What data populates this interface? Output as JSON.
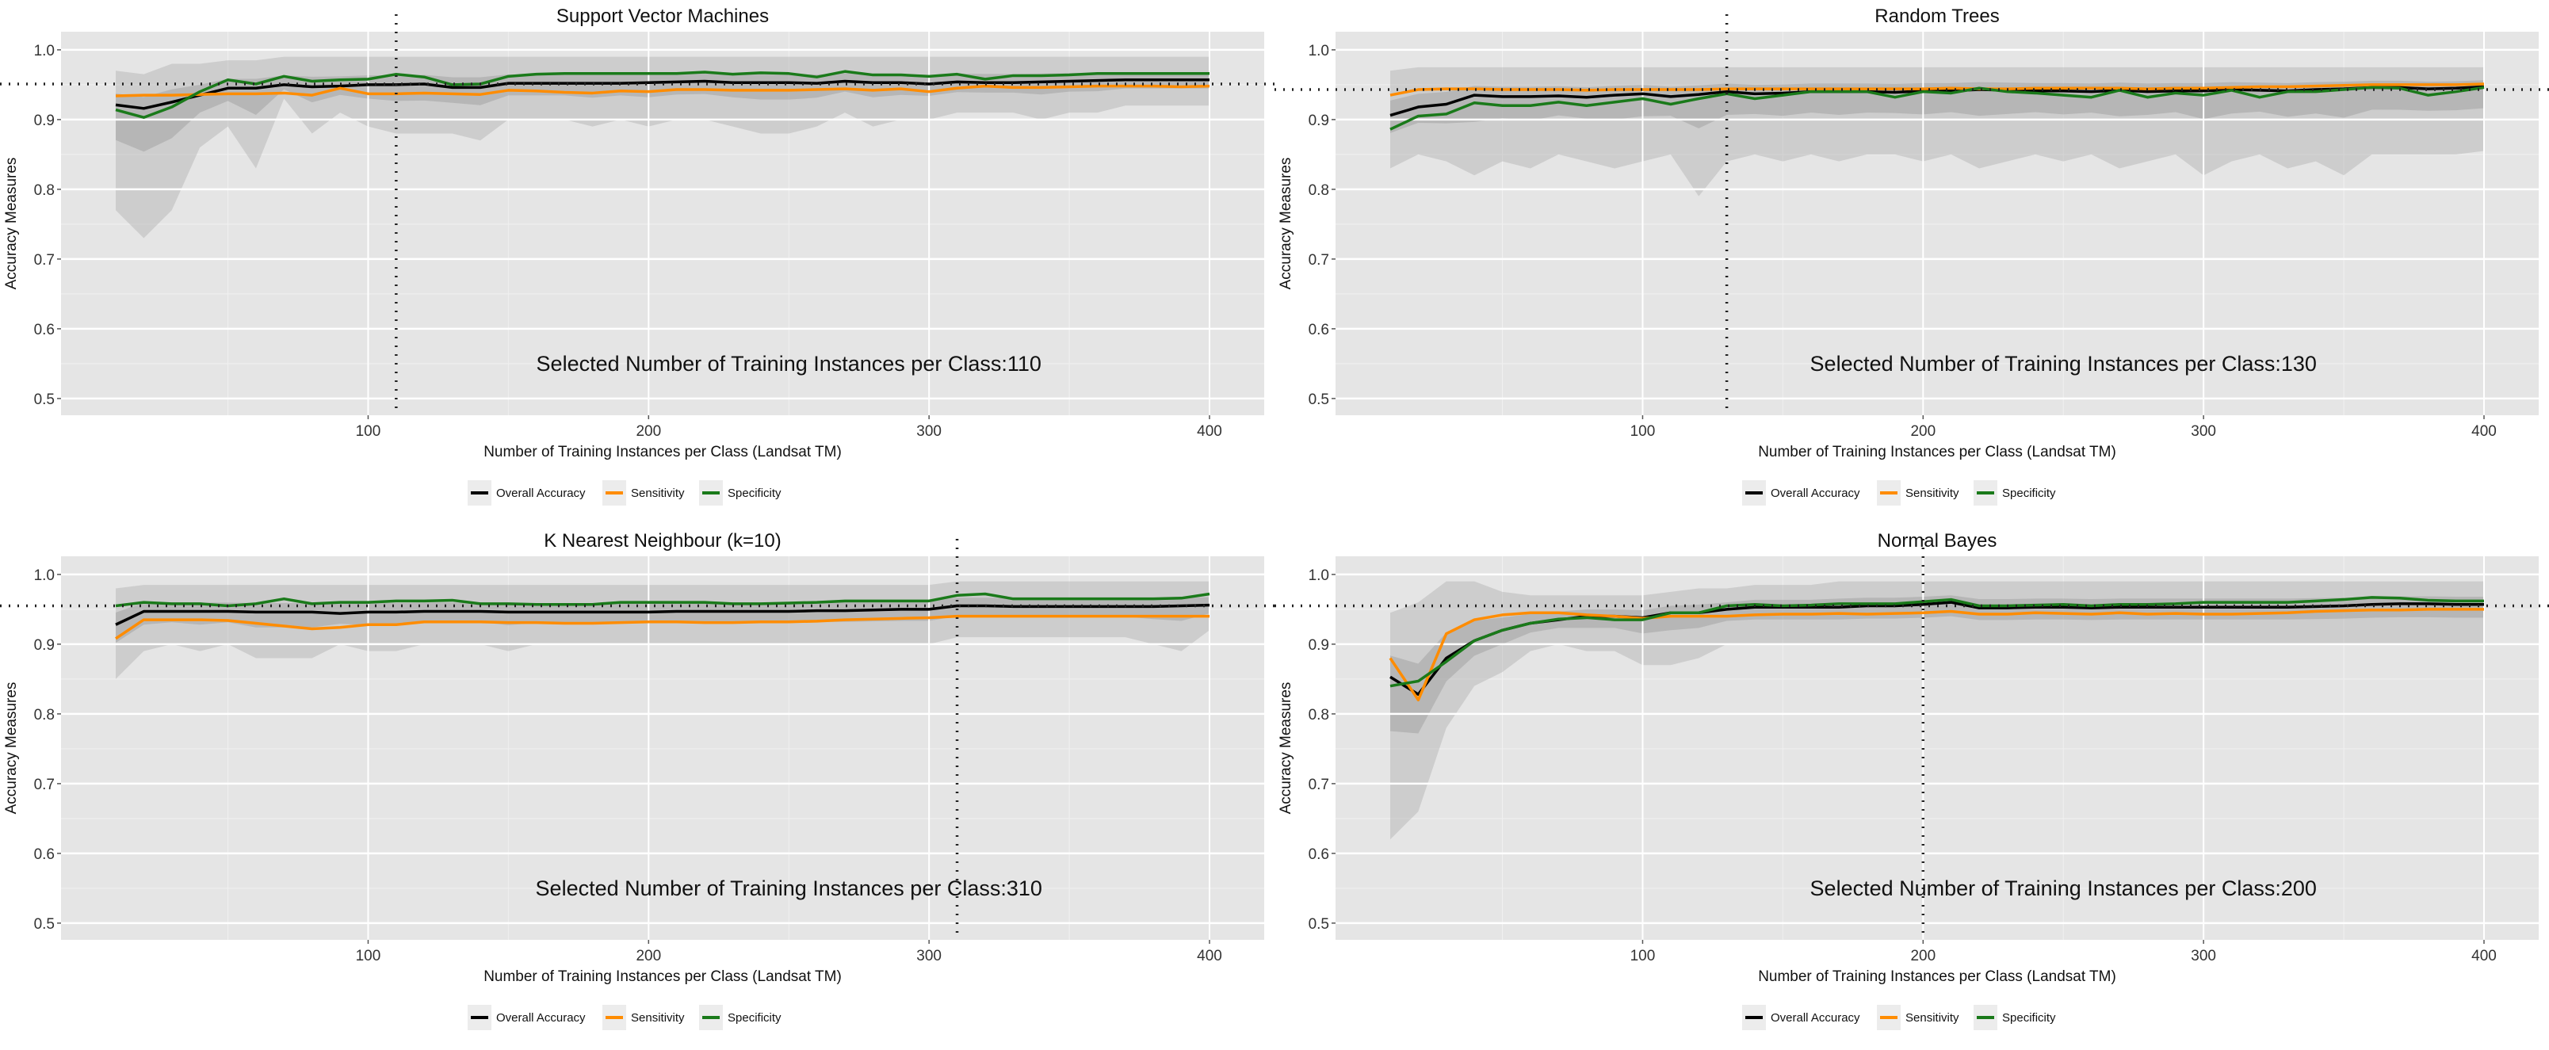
{
  "legend": {
    "items": [
      {
        "label": "Overall Accuracy",
        "color": "#000000"
      },
      {
        "label": "Sensitivity",
        "color": "#FF8C00"
      },
      {
        "label": "Specificity",
        "color": "#1A7A1A"
      }
    ]
  },
  "chart_data": [
    {
      "type": "line",
      "title": "Support Vector Machines",
      "xlabel": "Number of Training Instances per Class (Landsat TM)",
      "ylabel": "Accuracy Measures",
      "xlim": [
        -9.5,
        419.5
      ],
      "ylim": [
        0.476,
        1.026
      ],
      "xticks": [
        100,
        200,
        300,
        400
      ],
      "yticks": [
        "0.5",
        "0.6",
        "0.7",
        "0.8",
        "0.9",
        "1.0"
      ],
      "grid": true,
      "legend_position": "bottom",
      "x_start": 10,
      "x_step": 10,
      "reference_y": 0.951,
      "selected_x": 110,
      "annotation": "Selected Number of Training Instances per Class:110",
      "series": [
        {
          "name": "Overall Accuracy",
          "values": [
            0.921,
            0.916,
            0.925,
            0.935,
            0.945,
            0.945,
            0.95,
            0.947,
            0.948,
            0.95,
            0.95,
            0.951,
            0.946,
            0.946,
            0.952,
            0.952,
            0.952,
            0.952,
            0.952,
            0.953,
            0.954,
            0.955,
            0.953,
            0.953,
            0.953,
            0.952,
            0.955,
            0.953,
            0.953,
            0.951,
            0.954,
            0.953,
            0.953,
            0.954,
            0.955,
            0.956,
            0.957,
            0.957,
            0.957,
            0.957
          ]
        },
        {
          "name": "Sensitivity",
          "values": [
            0.934,
            0.935,
            0.935,
            0.936,
            0.937,
            0.937,
            0.938,
            0.935,
            0.945,
            0.937,
            0.937,
            0.938,
            0.937,
            0.936,
            0.942,
            0.941,
            0.939,
            0.938,
            0.941,
            0.94,
            0.943,
            0.943,
            0.942,
            0.942,
            0.942,
            0.943,
            0.944,
            0.942,
            0.944,
            0.94,
            0.945,
            0.948,
            0.946,
            0.946,
            0.947,
            0.948,
            0.948,
            0.948,
            0.947,
            0.948
          ]
        },
        {
          "name": "Specificity",
          "values": [
            0.914,
            0.903,
            0.918,
            0.94,
            0.957,
            0.951,
            0.962,
            0.955,
            0.957,
            0.958,
            0.965,
            0.961,
            0.95,
            0.951,
            0.962,
            0.965,
            0.966,
            0.966,
            0.966,
            0.966,
            0.966,
            0.968,
            0.965,
            0.967,
            0.966,
            0.961,
            0.969,
            0.964,
            0.964,
            0.962,
            0.965,
            0.958,
            0.963,
            0.963,
            0.964,
            0.966,
            0.966,
            0.966,
            0.966,
            0.966
          ]
        }
      ],
      "band_lower": [
        0.77,
        0.73,
        0.77,
        0.86,
        0.89,
        0.83,
        0.93,
        0.88,
        0.91,
        0.89,
        0.88,
        0.88,
        0.88,
        0.87,
        0.9,
        0.9,
        0.9,
        0.89,
        0.9,
        0.89,
        0.9,
        0.9,
        0.89,
        0.88,
        0.88,
        0.89,
        0.91,
        0.89,
        0.9,
        0.9,
        0.91,
        0.91,
        0.91,
        0.9,
        0.91,
        0.91,
        0.92,
        0.92,
        0.92,
        0.92
      ],
      "band_upper": [
        0.97,
        0.965,
        0.98,
        0.98,
        0.985,
        0.985,
        0.99,
        0.99,
        0.99,
        0.99,
        0.99,
        0.99,
        0.99,
        0.99,
        0.99,
        0.99,
        0.99,
        0.99,
        0.99,
        0.99,
        0.99,
        0.99,
        0.99,
        0.99,
        0.99,
        0.99,
        0.99,
        0.99,
        0.99,
        0.99,
        0.99,
        0.99,
        0.99,
        0.99,
        0.99,
        0.99,
        0.99,
        0.99,
        0.99,
        0.99
      ]
    },
    {
      "type": "line",
      "title": "Random Trees",
      "xlabel": "Number of Training Instances per Class (Landsat TM)",
      "ylabel": "Accuracy Measures",
      "xlim": [
        -9.5,
        419.5
      ],
      "ylim": [
        0.476,
        1.026
      ],
      "xticks": [
        100,
        200,
        300,
        400
      ],
      "yticks": [
        "0.5",
        "0.6",
        "0.7",
        "0.8",
        "0.9",
        "1.0"
      ],
      "grid": true,
      "legend_position": "bottom",
      "x_start": 10,
      "x_step": 10,
      "reference_y": 0.943,
      "selected_x": 130,
      "annotation": "Selected Number of Training Instances per Class:130",
      "series": [
        {
          "name": "Overall Accuracy",
          "values": [
            0.906,
            0.918,
            0.922,
            0.935,
            0.933,
            0.933,
            0.934,
            0.932,
            0.935,
            0.937,
            0.933,
            0.936,
            0.94,
            0.937,
            0.938,
            0.94,
            0.94,
            0.94,
            0.939,
            0.941,
            0.941,
            0.943,
            0.942,
            0.941,
            0.941,
            0.94,
            0.942,
            0.94,
            0.941,
            0.941,
            0.943,
            0.942,
            0.941,
            0.943,
            0.944,
            0.946,
            0.946,
            0.944,
            0.945,
            0.947
          ]
        },
        {
          "name": "Sensitivity",
          "values": [
            0.935,
            0.943,
            0.944,
            0.944,
            0.943,
            0.943,
            0.943,
            0.942,
            0.943,
            0.943,
            0.943,
            0.943,
            0.944,
            0.944,
            0.944,
            0.944,
            0.944,
            0.944,
            0.944,
            0.944,
            0.945,
            0.944,
            0.944,
            0.945,
            0.945,
            0.945,
            0.945,
            0.944,
            0.945,
            0.945,
            0.946,
            0.947,
            0.947,
            0.948,
            0.949,
            0.95,
            0.95,
            0.95,
            0.95,
            0.951
          ]
        },
        {
          "name": "Specificity",
          "values": [
            0.886,
            0.905,
            0.908,
            0.924,
            0.92,
            0.92,
            0.925,
            0.92,
            0.925,
            0.93,
            0.922,
            0.93,
            0.937,
            0.93,
            0.935,
            0.94,
            0.94,
            0.94,
            0.932,
            0.94,
            0.938,
            0.945,
            0.94,
            0.938,
            0.935,
            0.932,
            0.942,
            0.932,
            0.938,
            0.935,
            0.942,
            0.932,
            0.94,
            0.94,
            0.943,
            0.946,
            0.945,
            0.935,
            0.94,
            0.946
          ]
        }
      ],
      "band_lower": [
        0.83,
        0.85,
        0.84,
        0.82,
        0.84,
        0.83,
        0.85,
        0.84,
        0.83,
        0.84,
        0.85,
        0.79,
        0.84,
        0.85,
        0.84,
        0.85,
        0.84,
        0.85,
        0.85,
        0.84,
        0.85,
        0.83,
        0.84,
        0.85,
        0.84,
        0.85,
        0.83,
        0.84,
        0.85,
        0.82,
        0.84,
        0.85,
        0.83,
        0.84,
        0.82,
        0.85,
        0.85,
        0.85,
        0.85,
        0.855
      ],
      "band_upper": [
        0.97,
        0.975,
        0.975,
        0.975,
        0.975,
        0.975,
        0.975,
        0.975,
        0.975,
        0.975,
        0.975,
        0.975,
        0.975,
        0.975,
        0.975,
        0.975,
        0.975,
        0.975,
        0.975,
        0.975,
        0.975,
        0.975,
        0.975,
        0.975,
        0.975,
        0.975,
        0.975,
        0.975,
        0.975,
        0.975,
        0.975,
        0.975,
        0.975,
        0.975,
        0.975,
        0.975,
        0.975,
        0.975,
        0.975,
        0.975
      ]
    },
    {
      "type": "line",
      "title": "K Nearest Neighbour (k=10)",
      "xlabel": "Number of Training Instances per Class (Landsat TM)",
      "ylabel": "Accuracy Measures",
      "xlim": [
        -9.5,
        419.5
      ],
      "ylim": [
        0.476,
        1.026
      ],
      "xticks": [
        100,
        200,
        300,
        400
      ],
      "yticks": [
        "0.5",
        "0.6",
        "0.7",
        "0.8",
        "0.9",
        "1.0"
      ],
      "grid": true,
      "legend_position": "bottom",
      "x_start": 10,
      "x_step": 10,
      "reference_y": 0.955,
      "selected_x": 310,
      "annotation": "Selected Number of Training Instances per Class:310",
      "series": [
        {
          "name": "Overall Accuracy",
          "values": [
            0.928,
            0.947,
            0.947,
            0.947,
            0.947,
            0.946,
            0.946,
            0.946,
            0.944,
            0.946,
            0.946,
            0.947,
            0.947,
            0.947,
            0.946,
            0.946,
            0.946,
            0.946,
            0.946,
            0.946,
            0.947,
            0.947,
            0.947,
            0.947,
            0.947,
            0.948,
            0.948,
            0.949,
            0.95,
            0.95,
            0.955,
            0.955,
            0.954,
            0.954,
            0.954,
            0.954,
            0.954,
            0.954,
            0.955,
            0.956
          ]
        },
        {
          "name": "Sensitivity",
          "values": [
            0.908,
            0.935,
            0.935,
            0.935,
            0.934,
            0.93,
            0.926,
            0.922,
            0.924,
            0.928,
            0.928,
            0.932,
            0.932,
            0.932,
            0.931,
            0.931,
            0.93,
            0.93,
            0.931,
            0.932,
            0.932,
            0.931,
            0.931,
            0.932,
            0.932,
            0.933,
            0.935,
            0.936,
            0.937,
            0.938,
            0.94,
            0.94,
            0.94,
            0.94,
            0.94,
            0.94,
            0.94,
            0.94,
            0.94,
            0.94
          ]
        },
        {
          "name": "Specificity",
          "values": [
            0.955,
            0.96,
            0.958,
            0.958,
            0.955,
            0.958,
            0.965,
            0.958,
            0.96,
            0.96,
            0.962,
            0.962,
            0.963,
            0.958,
            0.958,
            0.957,
            0.957,
            0.957,
            0.96,
            0.96,
            0.96,
            0.96,
            0.958,
            0.958,
            0.959,
            0.96,
            0.962,
            0.962,
            0.962,
            0.962,
            0.97,
            0.972,
            0.965,
            0.965,
            0.965,
            0.965,
            0.965,
            0.965,
            0.966,
            0.972
          ]
        }
      ],
      "band_lower": [
        0.85,
        0.89,
        0.9,
        0.89,
        0.9,
        0.88,
        0.88,
        0.88,
        0.9,
        0.89,
        0.89,
        0.9,
        0.9,
        0.9,
        0.89,
        0.9,
        0.9,
        0.9,
        0.9,
        0.9,
        0.9,
        0.9,
        0.9,
        0.9,
        0.9,
        0.9,
        0.9,
        0.9,
        0.9,
        0.9,
        0.91,
        0.91,
        0.91,
        0.91,
        0.91,
        0.91,
        0.91,
        0.9,
        0.89,
        0.92
      ],
      "band_upper": [
        0.98,
        0.985,
        0.985,
        0.985,
        0.985,
        0.985,
        0.985,
        0.985,
        0.985,
        0.985,
        0.985,
        0.985,
        0.985,
        0.985,
        0.985,
        0.985,
        0.985,
        0.985,
        0.985,
        0.985,
        0.985,
        0.985,
        0.985,
        0.985,
        0.985,
        0.985,
        0.985,
        0.985,
        0.985,
        0.985,
        0.99,
        0.99,
        0.99,
        0.99,
        0.99,
        0.99,
        0.99,
        0.99,
        0.99,
        0.99
      ]
    },
    {
      "type": "line",
      "title": "Normal Bayes",
      "xlabel": "Number of Training Instances per Class (Landsat TM)",
      "ylabel": "Accuracy Measures",
      "xlim": [
        -9.5,
        419.5
      ],
      "ylim": [
        0.476,
        1.026
      ],
      "xticks": [
        100,
        200,
        300,
        400
      ],
      "yticks": [
        "0.5",
        "0.6",
        "0.7",
        "0.8",
        "0.9",
        "1.0"
      ],
      "grid": true,
      "legend_position": "bottom",
      "x_start": 10,
      "x_step": 10,
      "reference_y": 0.955,
      "selected_x": 200,
      "annotation": "Selected Number of Training Instances per Class:200",
      "series": [
        {
          "name": "Overall Accuracy",
          "values": [
            0.853,
            0.828,
            0.88,
            0.905,
            0.92,
            0.93,
            0.935,
            0.94,
            0.94,
            0.938,
            0.945,
            0.945,
            0.95,
            0.953,
            0.953,
            0.953,
            0.953,
            0.955,
            0.955,
            0.957,
            0.96,
            0.952,
            0.952,
            0.953,
            0.953,
            0.952,
            0.953,
            0.953,
            0.953,
            0.953,
            0.953,
            0.953,
            0.953,
            0.954,
            0.955,
            0.957,
            0.958,
            0.958,
            0.957,
            0.957
          ]
        },
        {
          "name": "Sensitivity",
          "values": [
            0.88,
            0.82,
            0.915,
            0.935,
            0.942,
            0.945,
            0.945,
            0.942,
            0.94,
            0.937,
            0.94,
            0.94,
            0.94,
            0.942,
            0.943,
            0.943,
            0.944,
            0.943,
            0.944,
            0.945,
            0.947,
            0.943,
            0.943,
            0.945,
            0.944,
            0.943,
            0.945,
            0.943,
            0.944,
            0.943,
            0.943,
            0.944,
            0.945,
            0.947,
            0.948,
            0.949,
            0.949,
            0.95,
            0.95,
            0.95
          ]
        },
        {
          "name": "Specificity",
          "values": [
            0.84,
            0.847,
            0.875,
            0.905,
            0.92,
            0.93,
            0.936,
            0.938,
            0.935,
            0.935,
            0.945,
            0.945,
            0.955,
            0.957,
            0.955,
            0.956,
            0.958,
            0.958,
            0.958,
            0.961,
            0.964,
            0.955,
            0.955,
            0.956,
            0.957,
            0.955,
            0.957,
            0.957,
            0.958,
            0.96,
            0.96,
            0.96,
            0.96,
            0.962,
            0.964,
            0.967,
            0.966,
            0.963,
            0.962,
            0.962
          ]
        }
      ],
      "band_lower": [
        0.62,
        0.66,
        0.78,
        0.84,
        0.86,
        0.89,
        0.9,
        0.89,
        0.89,
        0.87,
        0.87,
        0.88,
        0.9,
        0.9,
        0.9,
        0.9,
        0.9,
        0.9,
        0.9,
        0.9,
        0.9,
        0.9,
        0.9,
        0.9,
        0.9,
        0.9,
        0.9,
        0.9,
        0.9,
        0.9,
        0.9,
        0.9,
        0.9,
        0.9,
        0.9,
        0.9,
        0.9,
        0.9,
        0.9,
        0.9
      ],
      "band_upper": [
        0.945,
        0.96,
        0.99,
        0.99,
        0.975,
        0.97,
        0.97,
        0.97,
        0.97,
        0.97,
        0.975,
        0.98,
        0.98,
        0.985,
        0.985,
        0.985,
        0.99,
        0.99,
        0.99,
        0.99,
        0.99,
        0.99,
        0.99,
        0.99,
        0.99,
        0.99,
        0.99,
        0.99,
        0.99,
        0.99,
        0.99,
        0.99,
        0.99,
        0.99,
        0.99,
        0.99,
        0.99,
        0.99,
        0.99,
        0.99
      ]
    }
  ]
}
